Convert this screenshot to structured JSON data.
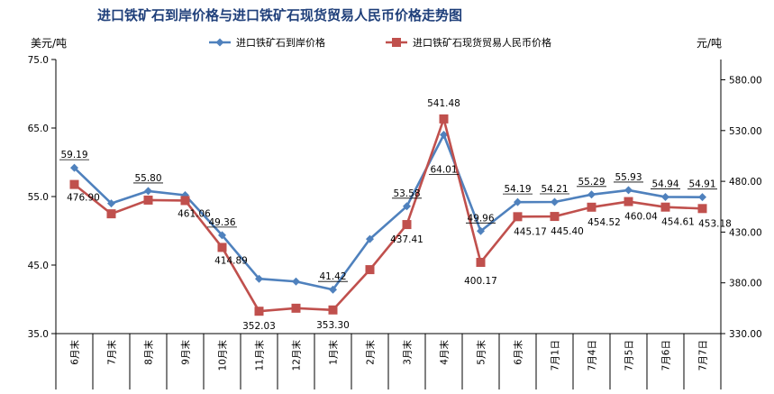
{
  "chart_data": {
    "type": "line",
    "title": "进口铁矿石到岸价格与进口铁矿石现货贸易人民币价格走势图",
    "ylabel_left": "美元/吨",
    "ylabel_right": "元/吨",
    "categories": [
      "6月末",
      "7月末",
      "8月末",
      "9月末",
      "10月末",
      "11月末",
      "12月末",
      "1月末",
      "2月末",
      "3月末",
      "4月末",
      "5月末",
      "6月末",
      "7月1日",
      "7月4日",
      "7月5日",
      "7月6日",
      "7月7日"
    ],
    "ylim_left": [
      35.0,
      75.0
    ],
    "yticks_left": [
      "35.0",
      "45.0",
      "55.0",
      "65.0",
      "75.0"
    ],
    "ylim_right": [
      330.0,
      600.0
    ],
    "yticks_right": [
      "330.00",
      "380.00",
      "430.00",
      "480.00",
      "530.00",
      "580.00"
    ],
    "legend_position": "top",
    "series": [
      {
        "name": "进口铁矿石到岸价格",
        "axis": "left",
        "color": "#4f81bd",
        "marker": "diamond",
        "values": [
          59.19,
          54.0,
          55.8,
          55.2,
          49.36,
          43.0,
          42.6,
          41.42,
          48.8,
          53.58,
          64.01,
          49.96,
          54.19,
          54.21,
          55.29,
          55.93,
          54.94,
          54.91
        ],
        "labels": [
          "59.19",
          "",
          "55.80",
          "",
          "49.36",
          "",
          "",
          "41.42",
          "",
          "53.58",
          "64.01",
          "49.96",
          "54.19",
          "54.21",
          "55.29",
          "55.93",
          "54.94",
          "54.91"
        ]
      },
      {
        "name": "进口铁矿石现货贸易人民币价格",
        "axis": "right",
        "color": "#c0504d",
        "marker": "square",
        "values": [
          476.9,
          448.0,
          461.5,
          461.06,
          414.89,
          352.03,
          355.0,
          353.3,
          393.0,
          437.41,
          541.48,
          400.17,
          445.17,
          445.4,
          454.52,
          460.04,
          454.61,
          453.18
        ],
        "labels": [
          "476.90",
          "",
          "",
          "461.06",
          "414.89",
          "352.03",
          "",
          "353.30",
          "",
          "437.41",
          "541.48",
          "400.17",
          "445.17",
          "445.40",
          "454.52",
          "460.04",
          "454.61",
          "453.18"
        ]
      }
    ]
  }
}
